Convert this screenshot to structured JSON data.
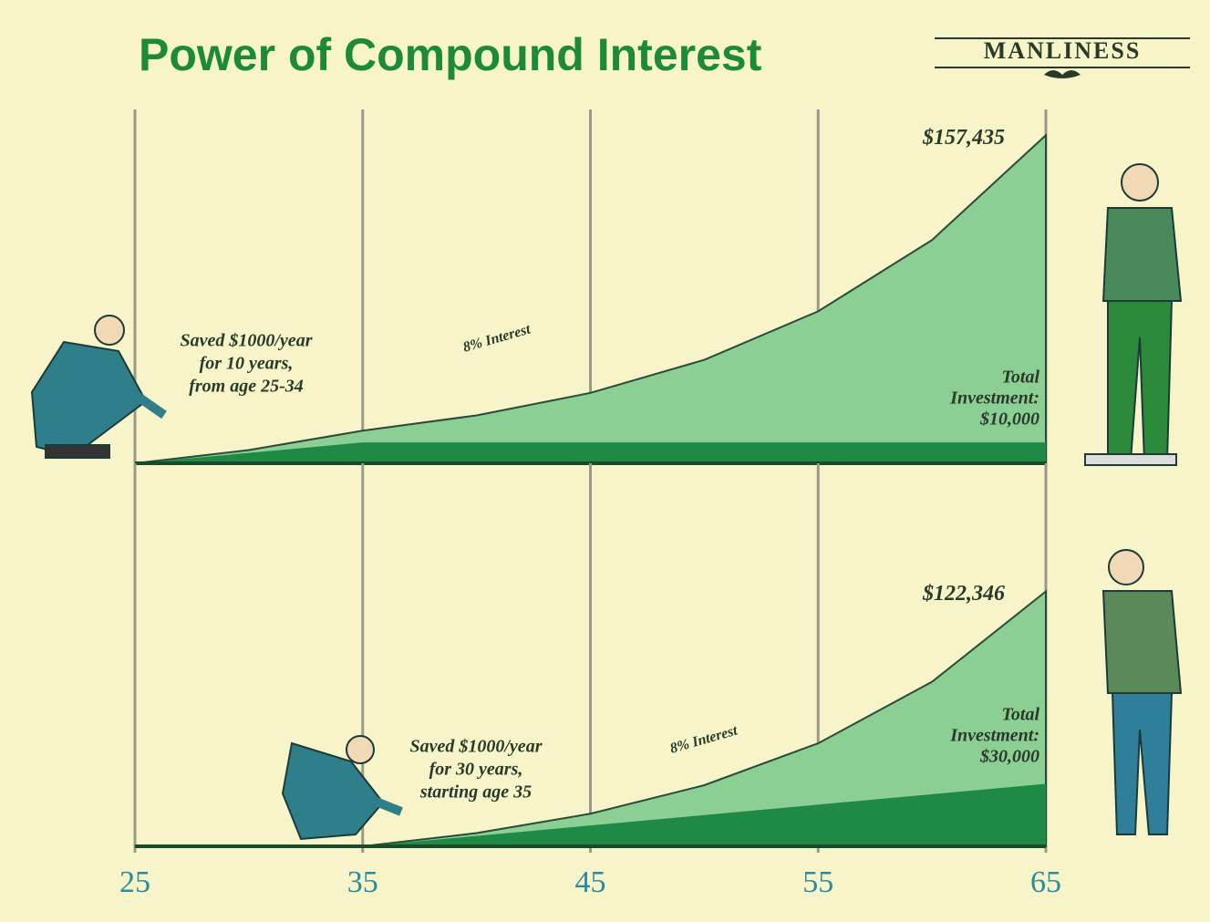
{
  "title": "Power of Compound Interest",
  "brand": "MANLINESS",
  "chart_data": [
    {
      "type": "area",
      "x": [
        25,
        30,
        35,
        40,
        45,
        50,
        55,
        60,
        65
      ],
      "series": [
        {
          "color": "#8ccf95",
          "values": [
            0,
            6336,
            15645,
            22988,
            33777,
            49629,
            72922,
            107145,
            157435
          ],
          "value_labels": [
            null,
            null,
            null,
            null,
            null,
            null,
            null,
            null,
            "$157,435"
          ]
        },
        {
          "color": "#1f8a45",
          "values": [
            0,
            5000,
            10000,
            10000,
            10000,
            10000,
            10000,
            10000,
            10000
          ]
        }
      ],
      "annotation": [
        "Saved $1000/year",
        "for 10 years,",
        "from age 25-34"
      ],
      "curve_label": "8% Interest",
      "investment_label": [
        "Total",
        "Investment:",
        "$10,000"
      ],
      "xlim": [
        25,
        65
      ],
      "xticks": [
        25,
        35,
        45,
        55,
        65
      ],
      "ylim": [
        0,
        165000
      ],
      "grid": true
    },
    {
      "type": "area",
      "x": [
        25,
        30,
        35,
        40,
        45,
        50,
        55,
        60,
        65
      ],
      "series": [
        {
          "color": "#8ccf95",
          "values": [
            null,
            null,
            0,
            6336,
            15645,
            29324,
            49423,
            78954,
            122346
          ],
          "value_labels": [
            null,
            null,
            null,
            null,
            null,
            null,
            null,
            null,
            "$122,346"
          ]
        },
        {
          "color": "#1f8a45",
          "values": [
            null,
            null,
            0,
            5000,
            10000,
            15000,
            20000,
            25000,
            30000
          ]
        }
      ],
      "annotation": [
        "Saved $1000/year",
        "for 30 years,",
        "starting age 35"
      ],
      "curve_label": "8% Interest",
      "investment_label": [
        "Total",
        "Investment:",
        "$30,000"
      ],
      "xlim": [
        25,
        65
      ],
      "xticks": [
        25,
        35,
        45,
        55,
        65
      ],
      "ylim": [
        0,
        165000
      ],
      "grid": true
    }
  ]
}
